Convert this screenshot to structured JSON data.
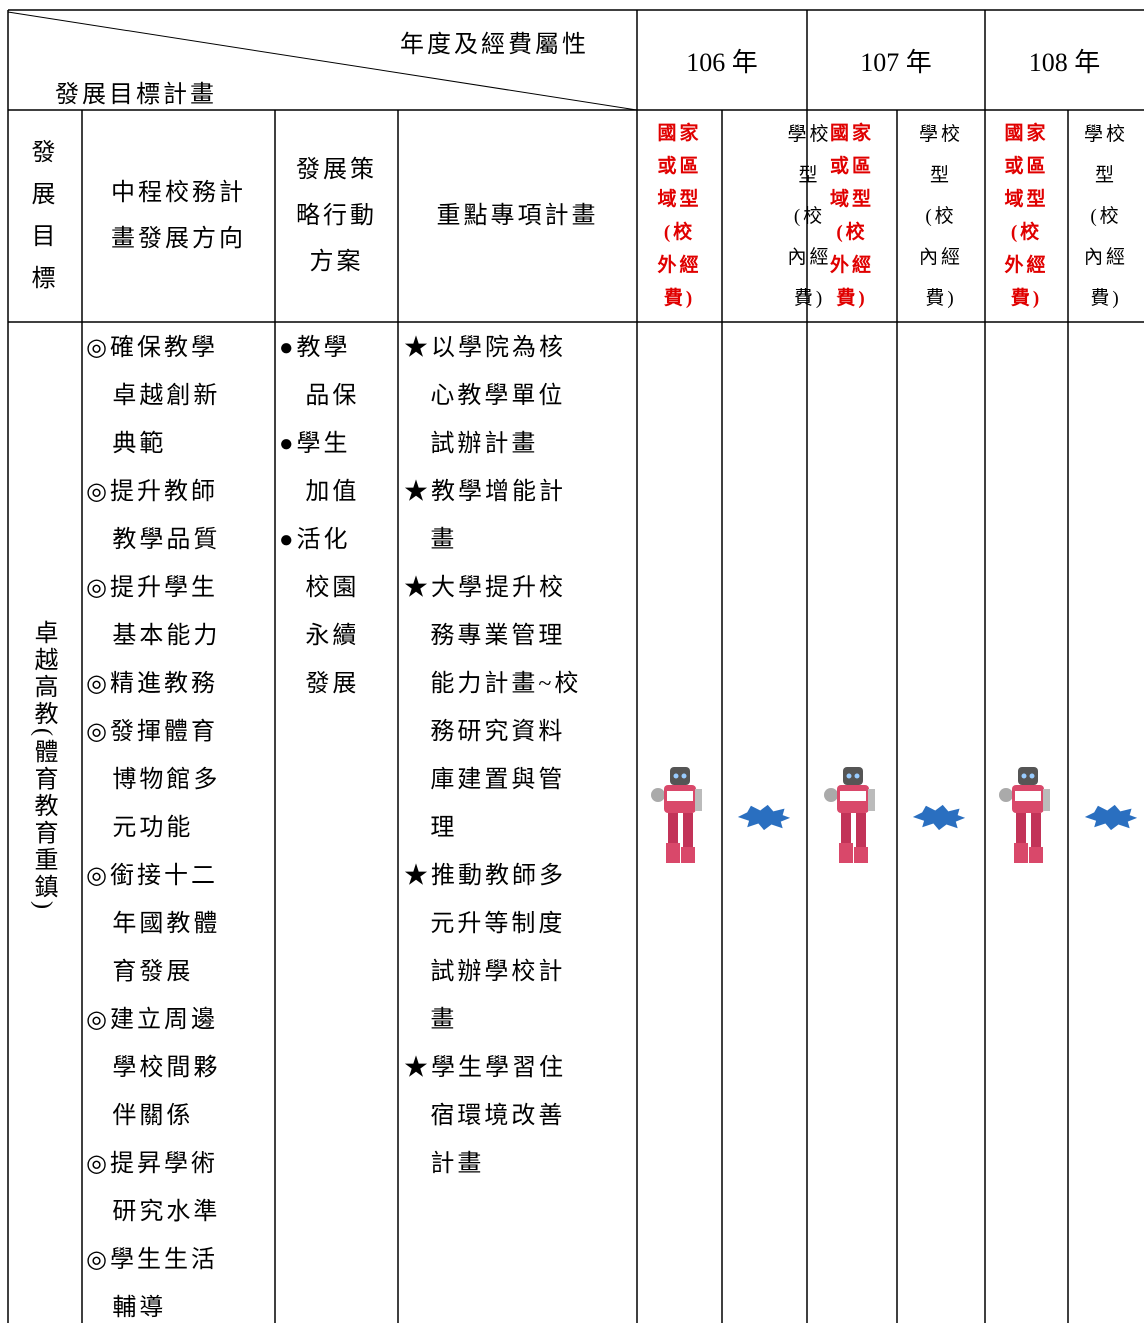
{
  "header": {
    "attribute": "年度及經費屬性",
    "goal_plan": "發展目標計畫",
    "years": [
      "106 年",
      "107 年",
      "108 年"
    ]
  },
  "subheader": {
    "goal": [
      "發",
      "展",
      "目",
      "標"
    ],
    "direction": [
      "中程校務計",
      "畫發展方向"
    ],
    "strategy": [
      "發展策",
      "略行動",
      "方案"
    ],
    "project": "重點專項計畫",
    "national": [
      "國家",
      "或區",
      "域型",
      "(校",
      "外經",
      "費)"
    ],
    "school": [
      "學校",
      "型",
      "(校",
      "內經",
      "費)"
    ]
  },
  "body": {
    "goal": "卓越高教(體育教育重鎮)",
    "directions": [
      [
        "◎確保教學",
        "卓越創新",
        "典範"
      ],
      [
        "◎提升教師",
        "教學品質"
      ],
      [
        "◎提升學生",
        "基本能力"
      ],
      [
        "◎精進教務"
      ],
      [
        "◎發揮體育",
        "博物館多",
        "元功能"
      ],
      [
        "◎銜接十二",
        "年國教體",
        "育發展"
      ],
      [
        "◎建立周邊",
        "學校間夥",
        "伴關係"
      ],
      [
        "◎提昇學術",
        "研究水準"
      ],
      [
        "◎學生生活",
        "輔導"
      ]
    ],
    "strategies": [
      [
        "●教學",
        "品保"
      ],
      [
        "●學生",
        "加值"
      ],
      [
        "●活化",
        "校園",
        "永續",
        "發展"
      ]
    ],
    "projects": [
      [
        "★以學院為核",
        "心教學單位",
        "試辦計畫"
      ],
      [
        "★教學增能計",
        "畫"
      ],
      [
        "★大學提升校",
        "務專業管理",
        "能力計畫~校",
        "務研究資料",
        "庫建置與管",
        "理"
      ],
      [
        "★推動教師多",
        "元升等制度",
        "試辦學校計",
        "畫"
      ],
      [
        "★學生學習住",
        "宿環境改善",
        "計畫"
      ]
    ]
  }
}
